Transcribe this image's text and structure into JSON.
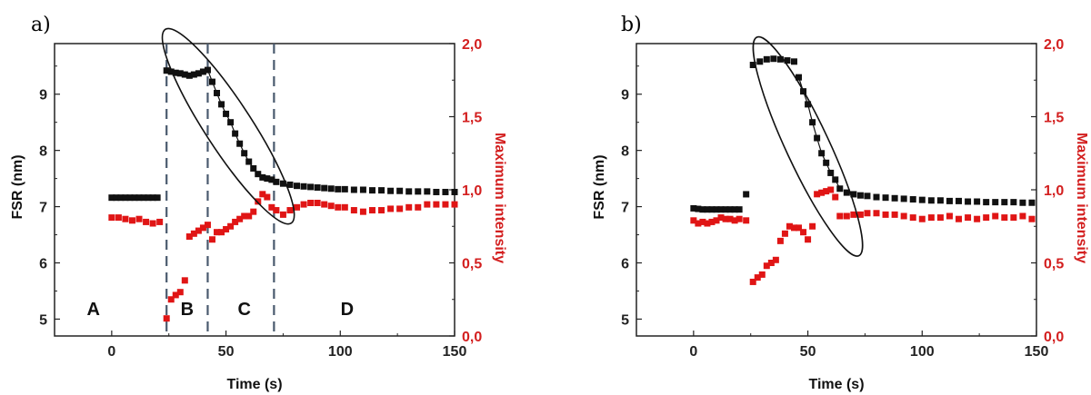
{
  "chart_data": [
    {
      "panel_label": "a)",
      "type": "scatter",
      "xlabel": "Time (s)",
      "ylabel": "FSR (nm)",
      "y2label": "Maximum intensity",
      "xlim": [
        -25,
        150
      ],
      "ylim": [
        4.7,
        9.9
      ],
      "y2lim": [
        0.0,
        2.0
      ],
      "x_ticks": [
        "0",
        "50",
        "100",
        "150"
      ],
      "y_ticks": [
        "5",
        "6",
        "7",
        "8",
        "9"
      ],
      "y2_ticks": [
        "0,0",
        "0,5",
        "1,0",
        "1,5",
        "2,0"
      ],
      "colors": {
        "fsr": "#111111",
        "intensity": "#e01515",
        "dashed": "#4a5a6e",
        "axis": "#222222"
      },
      "vlines": [
        24,
        42,
        71
      ],
      "region_labels": [
        {
          "text": "A",
          "x": -8,
          "y": 5.2
        },
        {
          "text": "B",
          "x": 33,
          "y": 5.2
        },
        {
          "text": "C",
          "x": 58,
          "y": 5.2
        },
        {
          "text": "D",
          "x": 103,
          "y": 5.2
        }
      ],
      "ellipse": {
        "cx": 51,
        "cy": 8.43,
        "rx_data": 23,
        "ry_data": 0.42,
        "angle_deg": 57
      },
      "series": [
        {
          "axis": "left",
          "x": [
            0,
            2,
            4,
            6,
            8,
            10,
            12,
            14,
            16,
            18,
            20,
            24,
            26,
            28,
            30,
            32,
            34,
            36,
            38,
            40,
            42,
            44,
            46,
            48,
            50,
            52,
            54,
            56,
            58,
            60,
            62,
            64,
            66,
            68,
            70,
            72,
            75,
            78,
            81,
            84,
            87,
            90,
            93,
            96,
            99,
            102,
            106,
            110,
            114,
            118,
            122,
            126,
            130,
            134,
            138,
            142,
            146,
            150
          ],
          "y": [
            7.16,
            7.16,
            7.16,
            7.16,
            7.16,
            7.16,
            7.16,
            7.16,
            7.16,
            7.16,
            7.16,
            9.42,
            9.4,
            9.38,
            9.37,
            9.35,
            9.33,
            9.35,
            9.37,
            9.4,
            9.43,
            9.22,
            9.02,
            8.82,
            8.65,
            8.5,
            8.3,
            8.12,
            7.95,
            7.8,
            7.68,
            7.58,
            7.52,
            7.5,
            7.48,
            7.44,
            7.41,
            7.39,
            7.37,
            7.36,
            7.35,
            7.34,
            7.33,
            7.32,
            7.31,
            7.31,
            7.3,
            7.3,
            7.29,
            7.29,
            7.28,
            7.28,
            7.27,
            7.27,
            7.27,
            7.26,
            7.26,
            7.26
          ]
        },
        {
          "axis": "right",
          "x": [
            0,
            3,
            6,
            9,
            12,
            15,
            18,
            21,
            24,
            26,
            28,
            30,
            32,
            34,
            36,
            38,
            40,
            42,
            44,
            46,
            48,
            50,
            52,
            54,
            56,
            58,
            60,
            62,
            64,
            66,
            68,
            70,
            72,
            75,
            78,
            81,
            84,
            87,
            90,
            93,
            96,
            99,
            102,
            106,
            110,
            114,
            118,
            122,
            126,
            130,
            134,
            138,
            142,
            146,
            150
          ],
          "y": [
            0.81,
            0.81,
            0.8,
            0.79,
            0.8,
            0.78,
            0.77,
            0.78,
            0.12,
            0.25,
            0.28,
            0.3,
            0.38,
            0.68,
            0.7,
            0.72,
            0.74,
            0.76,
            0.66,
            0.71,
            0.71,
            0.73,
            0.75,
            0.78,
            0.8,
            0.82,
            0.82,
            0.85,
            0.92,
            0.97,
            0.95,
            0.88,
            0.86,
            0.83,
            0.86,
            0.88,
            0.9,
            0.91,
            0.91,
            0.9,
            0.89,
            0.88,
            0.88,
            0.86,
            0.85,
            0.86,
            0.86,
            0.87,
            0.87,
            0.88,
            0.88,
            0.9,
            0.9,
            0.9,
            0.9
          ]
        }
      ]
    },
    {
      "panel_label": "b)",
      "type": "scatter",
      "xlabel": "Time (s)",
      "ylabel": "FSR (nm)",
      "y2label": "Maximum intensity",
      "xlim": [
        -25,
        150
      ],
      "ylim": [
        4.7,
        9.9
      ],
      "y2lim": [
        0.0,
        2.0
      ],
      "x_ticks": [
        "0",
        "50",
        "100",
        "150"
      ],
      "y_ticks": [
        "5",
        "6",
        "7",
        "8",
        "9"
      ],
      "y2_ticks": [
        "0,0",
        "0,5",
        "1,0",
        "1,5",
        "2,0"
      ],
      "colors": {
        "fsr": "#111111",
        "intensity": "#e01515",
        "axis": "#222222"
      },
      "ellipse": {
        "cx": 50,
        "cy": 8.07,
        "rx_data": 24,
        "ry_data": 0.35,
        "angle_deg": 65
      },
      "series": [
        {
          "axis": "left",
          "x": [
            0,
            2,
            4,
            6,
            8,
            10,
            12,
            14,
            16,
            18,
            20,
            23,
            26,
            29,
            32,
            35,
            38,
            41,
            44,
            46,
            48,
            50,
            52,
            54,
            56,
            58,
            60,
            62,
            64,
            67,
            70,
            73,
            76,
            80,
            84,
            88,
            92,
            96,
            100,
            104,
            108,
            112,
            116,
            120,
            124,
            128,
            132,
            136,
            140,
            144,
            148
          ],
          "y": [
            6.97,
            6.96,
            6.95,
            6.95,
            6.95,
            6.95,
            6.95,
            6.95,
            6.95,
            6.95,
            6.95,
            7.22,
            9.52,
            9.58,
            9.62,
            9.63,
            9.62,
            9.6,
            9.58,
            9.3,
            9.05,
            8.82,
            8.5,
            8.22,
            7.95,
            7.78,
            7.6,
            7.48,
            7.32,
            7.25,
            7.22,
            7.2,
            7.19,
            7.17,
            7.16,
            7.15,
            7.14,
            7.13,
            7.12,
            7.11,
            7.11,
            7.1,
            7.1,
            7.09,
            7.09,
            7.08,
            7.08,
            7.08,
            7.08,
            7.07,
            7.07
          ]
        },
        {
          "axis": "right",
          "x": [
            0,
            2,
            4,
            6,
            8,
            10,
            12,
            14,
            16,
            18,
            20,
            23,
            26,
            28,
            30,
            32,
            34,
            36,
            38,
            40,
            42,
            44,
            46,
            48,
            50,
            52,
            54,
            56,
            58,
            60,
            62,
            64,
            67,
            70,
            73,
            76,
            80,
            84,
            88,
            92,
            96,
            100,
            104,
            108,
            112,
            116,
            120,
            124,
            128,
            132,
            136,
            140,
            144,
            148
          ],
          "y": [
            0.79,
            0.77,
            0.78,
            0.77,
            0.78,
            0.79,
            0.81,
            0.8,
            0.8,
            0.79,
            0.8,
            0.79,
            0.37,
            0.4,
            0.42,
            0.48,
            0.5,
            0.52,
            0.65,
            0.7,
            0.75,
            0.74,
            0.74,
            0.71,
            0.66,
            0.75,
            0.97,
            0.98,
            0.99,
            1.0,
            0.95,
            0.82,
            0.82,
            0.83,
            0.83,
            0.84,
            0.84,
            0.83,
            0.83,
            0.82,
            0.81,
            0.8,
            0.81,
            0.81,
            0.82,
            0.8,
            0.81,
            0.8,
            0.81,
            0.82,
            0.81,
            0.81,
            0.82,
            0.8
          ]
        }
      ]
    }
  ]
}
